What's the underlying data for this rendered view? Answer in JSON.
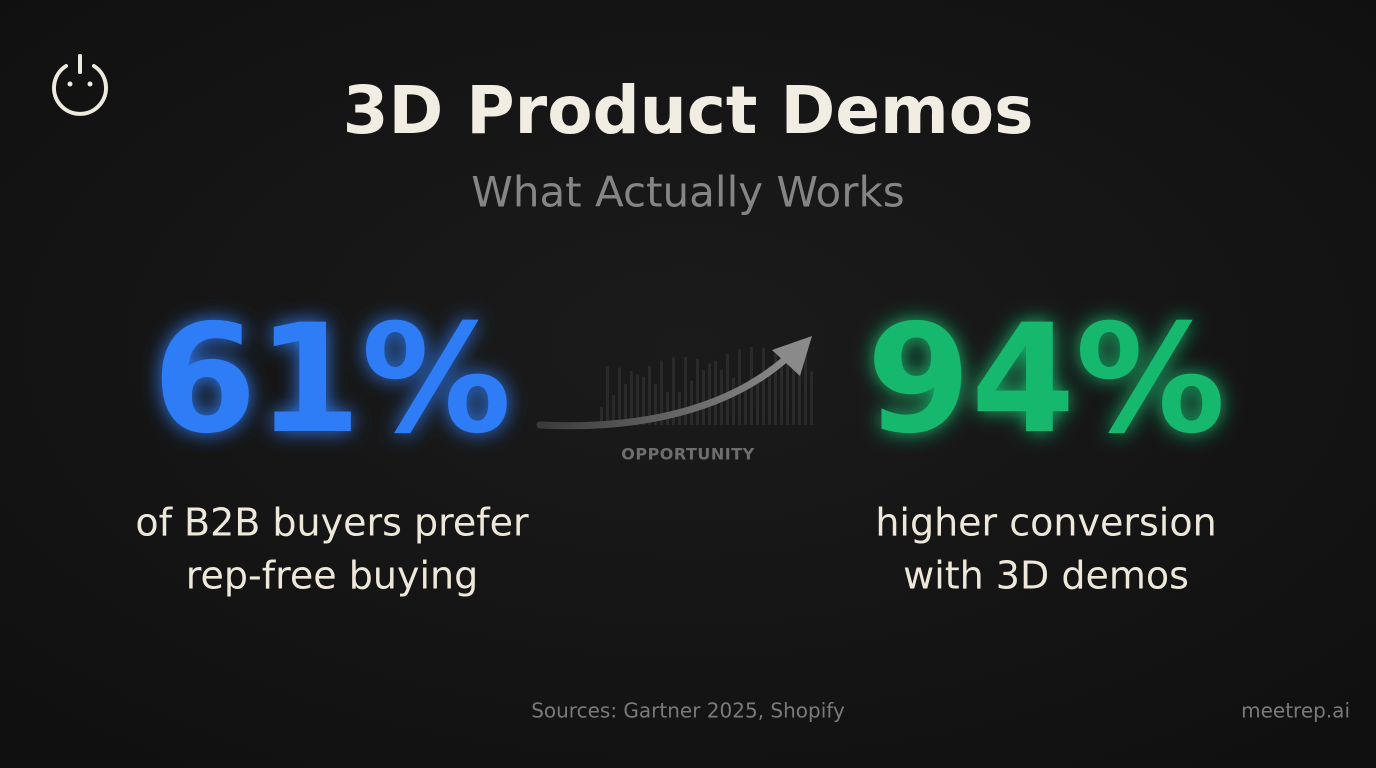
{
  "header": {
    "title": "3D Product Demos",
    "subtitle": "What Actually Works"
  },
  "stats": [
    {
      "value": "61%",
      "caption_lines": [
        "of B2B buyers prefer",
        "rep-free buying"
      ]
    },
    {
      "value": "94%",
      "caption_lines": [
        "higher conversion",
        "with 3D demos"
      ]
    }
  ],
  "connector": {
    "label": "OPPORTUNITY"
  },
  "footer": {
    "sources": "Sources: Gartner 2025, Shopify",
    "brand": "meetrep.ai"
  }
}
